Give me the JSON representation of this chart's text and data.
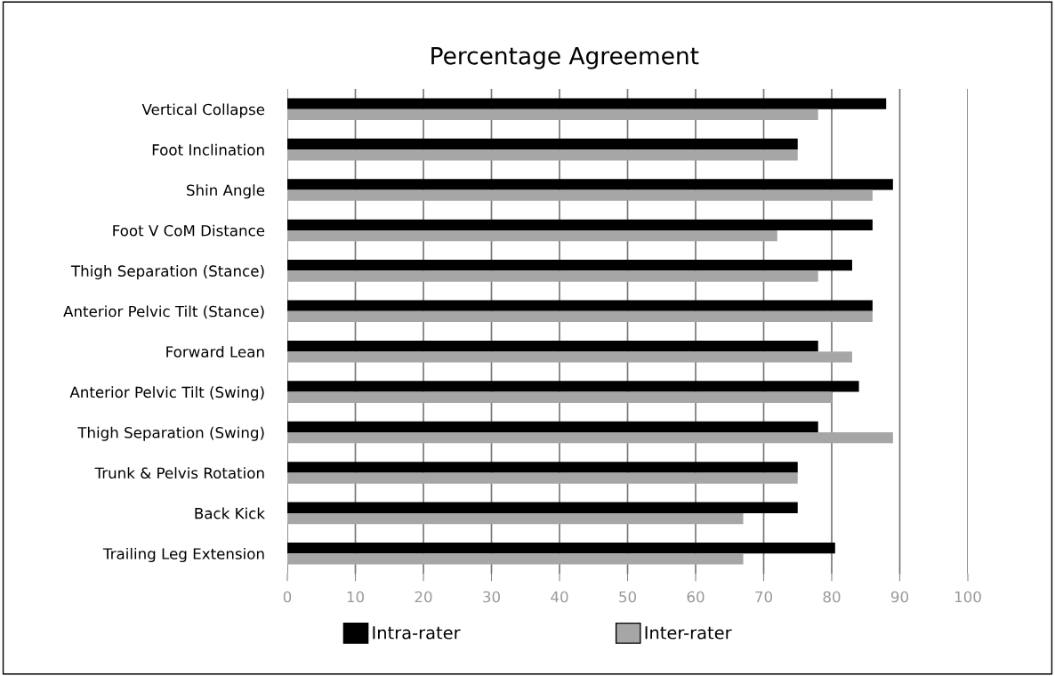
{
  "chart_data": {
    "type": "bar",
    "orientation": "horizontal",
    "title": "Percentage Agreement",
    "categories": [
      "Vertical Collapse",
      "Foot Inclination",
      "Shin Angle",
      "Foot V CoM Distance",
      "Thigh Separation (Stance)",
      "Anterior Pelvic Tilt (Stance)",
      "Forward Lean",
      "Anterior Pelvic Tilt (Swing)",
      "Thigh Separation (Swing)",
      "Trunk & Pelvis Rotation",
      "Back Kick",
      "Trailing Leg Extension"
    ],
    "series": [
      {
        "name": "Intra-rater",
        "color": "#000000",
        "values": [
          88,
          75,
          89,
          86,
          83,
          86,
          78,
          84,
          78,
          75,
          75,
          80.5
        ]
      },
      {
        "name": "Inter-rater",
        "color": "#a6a6a6",
        "values": [
          78,
          75,
          86,
          72,
          78,
          86,
          83,
          80,
          89,
          75,
          67,
          67
        ]
      }
    ],
    "xlim": [
      0,
      100
    ],
    "xticks": [
      0,
      10,
      20,
      30,
      40,
      50,
      60,
      70,
      80,
      90,
      100
    ],
    "grid": "x",
    "legend": "bottom"
  }
}
